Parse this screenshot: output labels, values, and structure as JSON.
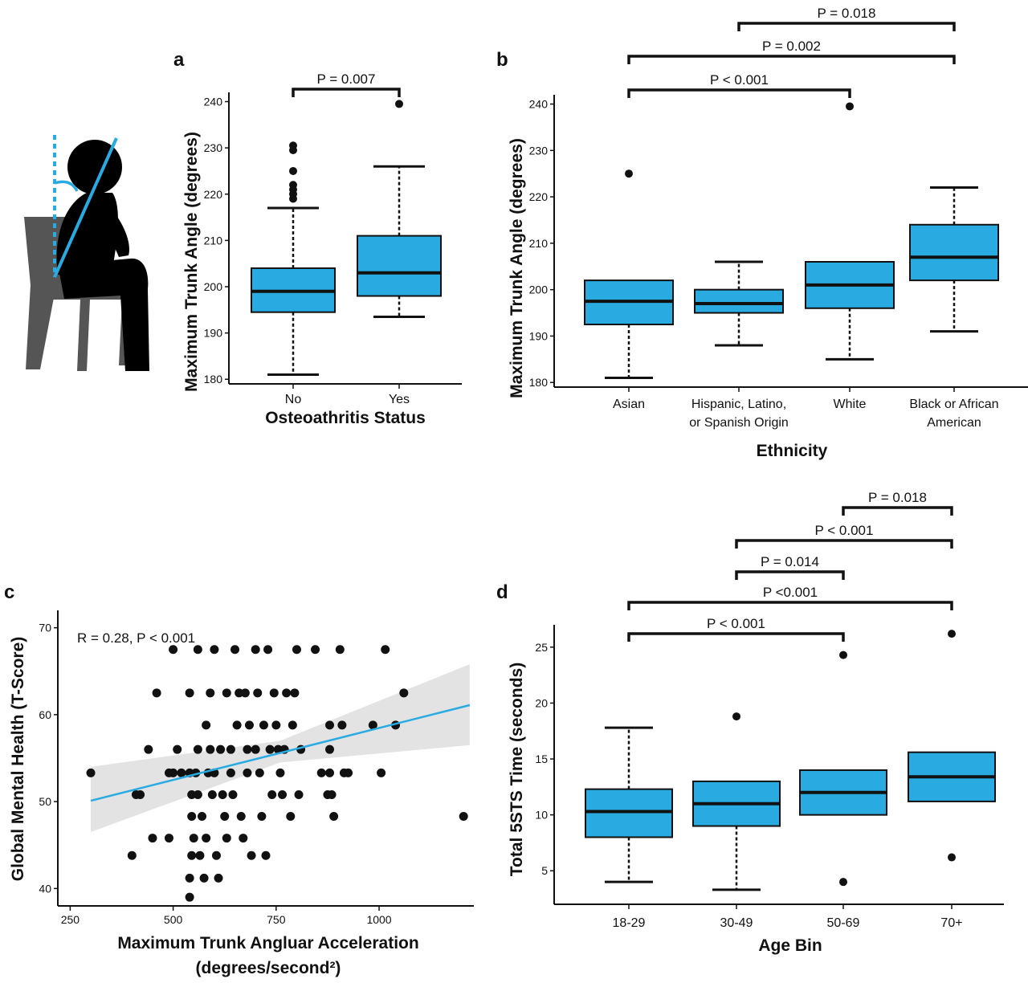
{
  "chart_data": [
    {
      "panel": "a",
      "type": "box",
      "xlabel": "Osteoathritis Status",
      "ylabel": "Maximum Trunk Angle (degrees)",
      "ylim": [
        179,
        242
      ],
      "yticks": [
        180,
        190,
        200,
        210,
        220,
        230,
        240
      ],
      "categories": [
        "No",
        "Yes"
      ],
      "boxes": [
        {
          "whisker_low": 181,
          "q1": 194.5,
          "median": 199,
          "q3": 204,
          "whisker_high": 217,
          "outliers": [
            219,
            220,
            221,
            222,
            225,
            229.5,
            230.5
          ]
        },
        {
          "whisker_low": 193.5,
          "q1": 198,
          "median": 203,
          "q3": 211,
          "whisker_high": 226,
          "outliers": [
            239.5
          ]
        }
      ],
      "comparisons": [
        {
          "from": 0,
          "to": 1,
          "label": "P = 0.007"
        }
      ],
      "fill": "#29abe2"
    },
    {
      "panel": "b",
      "type": "box",
      "xlabel": "Ethnicity",
      "ylabel": "Maximum Trunk Angle (degrees)",
      "ylim": [
        179,
        242
      ],
      "yticks": [
        180,
        190,
        200,
        210,
        220,
        230,
        240
      ],
      "categories": [
        [
          "Asian"
        ],
        [
          "Hispanic, Latino,",
          "or Spanish Origin"
        ],
        [
          "White"
        ],
        [
          "Black or African",
          "American"
        ]
      ],
      "boxes": [
        {
          "whisker_low": 181,
          "q1": 192.5,
          "median": 197.5,
          "q3": 202,
          "whisker_high": 202,
          "outliers": [
            225
          ]
        },
        {
          "whisker_low": 188,
          "q1": 195,
          "median": 197,
          "q3": 200,
          "whisker_high": 206,
          "outliers": []
        },
        {
          "whisker_low": 185,
          "q1": 196,
          "median": 201,
          "q3": 206,
          "whisker_high": 206,
          "outliers": [
            239.5
          ]
        },
        {
          "whisker_low": 191,
          "q1": 202,
          "median": 207,
          "q3": 214,
          "whisker_high": 222,
          "outliers": []
        }
      ],
      "comparisons": [
        {
          "from": 0,
          "to": 2,
          "label": "P < 0.001"
        },
        {
          "from": 0,
          "to": 3,
          "label": "P = 0.002"
        },
        {
          "from": 1,
          "to": 3,
          "label": "P = 0.018"
        }
      ],
      "fill": "#29abe2"
    },
    {
      "panel": "c",
      "type": "scatter",
      "xlabel_lines": [
        "Maximum Trunk Angluar Acceleration",
        "(degrees/second²)"
      ],
      "ylabel": "Global Mental Health (T-Score)",
      "xlim": [
        220,
        1230
      ],
      "ylim": [
        38,
        72
      ],
      "xticks": [
        250,
        500,
        750,
        1000
      ],
      "yticks": [
        40,
        50,
        60,
        70
      ],
      "annotation": "R = 0.28, P < 0.001",
      "fit_line": {
        "x": [
          300,
          1220
        ],
        "y": [
          50.1,
          61.1
        ]
      },
      "confidence_band": {
        "x": [
          300,
          760,
          1220
        ],
        "lower": [
          46.5,
          54.5,
          56.5
        ],
        "upper": [
          54.0,
          57.0,
          65.8
        ]
      },
      "points": [
        [
          300,
          53.3
        ],
        [
          410,
          50.8
        ],
        [
          420,
          50.8
        ],
        [
          400,
          43.8
        ],
        [
          440,
          56.0
        ],
        [
          450,
          45.8
        ],
        [
          460,
          62.5
        ],
        [
          490,
          45.8
        ],
        [
          490,
          53.3
        ],
        [
          500,
          67.5
        ],
        [
          500,
          53.3
        ],
        [
          510,
          56.0
        ],
        [
          520,
          53.3
        ],
        [
          540,
          62.5
        ],
        [
          540,
          53.3
        ],
        [
          545,
          50.8
        ],
        [
          545,
          48.3
        ],
        [
          545,
          43.8
        ],
        [
          540,
          41.2
        ],
        [
          540,
          39.0
        ],
        [
          550,
          45.8
        ],
        [
          555,
          53.3
        ],
        [
          560,
          67.5
        ],
        [
          560,
          56.0
        ],
        [
          560,
          50.8
        ],
        [
          565,
          43.8
        ],
        [
          570,
          48.3
        ],
        [
          575,
          41.2
        ],
        [
          580,
          45.8
        ],
        [
          580,
          58.8
        ],
        [
          585,
          53.3
        ],
        [
          590,
          62.5
        ],
        [
          590,
          56.0
        ],
        [
          595,
          50.8
        ],
        [
          600,
          67.5
        ],
        [
          600,
          53.3
        ],
        [
          605,
          43.8
        ],
        [
          610,
          41.2
        ],
        [
          615,
          56.0
        ],
        [
          620,
          50.8
        ],
        [
          625,
          48.3
        ],
        [
          630,
          45.8
        ],
        [
          630,
          62.5
        ],
        [
          640,
          56.0
        ],
        [
          640,
          53.3
        ],
        [
          645,
          50.8
        ],
        [
          650,
          67.5
        ],
        [
          655,
          58.8
        ],
        [
          660,
          62.5
        ],
        [
          665,
          48.3
        ],
        [
          670,
          45.8
        ],
        [
          675,
          62.5
        ],
        [
          680,
          56.0
        ],
        [
          680,
          53.3
        ],
        [
          685,
          58.8
        ],
        [
          690,
          43.8
        ],
        [
          700,
          67.5
        ],
        [
          700,
          56.0
        ],
        [
          705,
          62.5
        ],
        [
          710,
          53.3
        ],
        [
          715,
          48.3
        ],
        [
          720,
          58.8
        ],
        [
          725,
          43.8
        ],
        [
          730,
          67.5
        ],
        [
          735,
          56.0
        ],
        [
          740,
          50.8
        ],
        [
          745,
          62.5
        ],
        [
          750,
          58.8
        ],
        [
          755,
          56.0
        ],
        [
          760,
          53.3
        ],
        [
          765,
          50.8
        ],
        [
          770,
          56.0
        ],
        [
          775,
          62.5
        ],
        [
          785,
          48.3
        ],
        [
          790,
          58.8
        ],
        [
          795,
          62.5
        ],
        [
          800,
          67.5
        ],
        [
          805,
          50.8
        ],
        [
          810,
          56.0
        ],
        [
          845,
          67.5
        ],
        [
          860,
          53.3
        ],
        [
          875,
          50.8
        ],
        [
          880,
          58.8
        ],
        [
          880,
          56.0
        ],
        [
          880,
          53.3
        ],
        [
          885,
          50.8
        ],
        [
          890,
          48.3
        ],
        [
          905,
          67.5
        ],
        [
          910,
          58.8
        ],
        [
          915,
          53.3
        ],
        [
          925,
          53.3
        ],
        [
          985,
          58.8
        ],
        [
          1005,
          53.3
        ],
        [
          1015,
          67.5
        ],
        [
          1040,
          58.8
        ],
        [
          1060,
          62.5
        ],
        [
          1205,
          48.3
        ]
      ],
      "line_color": "#29abe2"
    },
    {
      "panel": "d",
      "type": "box",
      "xlabel": "Age Bin",
      "ylabel": "Total 5STS Time (seconds)",
      "ylim": [
        2,
        27
      ],
      "yticks": [
        5,
        10,
        15,
        20,
        25
      ],
      "categories": [
        "18-29",
        "30-49",
        "50-69",
        "70+"
      ],
      "boxes": [
        {
          "whisker_low": 4,
          "q1": 8,
          "median": 10.3,
          "q3": 12.3,
          "whisker_high": 17.8,
          "outliers": []
        },
        {
          "whisker_low": 3.3,
          "q1": 9,
          "median": 11,
          "q3": 13,
          "whisker_high": 13,
          "outliers": [
            18.8
          ]
        },
        {
          "whisker_low": 10,
          "q1": 10,
          "median": 12,
          "q3": 14,
          "whisker_high": 14,
          "outliers": [
            24.3,
            4
          ]
        },
        {
          "whisker_low": 11.2,
          "q1": 11.2,
          "median": 13.4,
          "q3": 15.6,
          "whisker_high": 15.6,
          "outliers": [
            26.2,
            6.2
          ]
        }
      ],
      "comparisons": [
        {
          "from": 0,
          "to": 2,
          "label": "P < 0.001"
        },
        {
          "from": 0,
          "to": 3,
          "label": "P <0.001"
        },
        {
          "from": 1,
          "to": 2,
          "label": "P = 0.014"
        },
        {
          "from": 1,
          "to": 3,
          "label": "P < 0.001"
        },
        {
          "from": 2,
          "to": 3,
          "label": "P = 0.018"
        }
      ],
      "fill": "#29abe2"
    }
  ],
  "illustration": {
    "icon": "seated-person-trunk-angle-icon",
    "accent": "#29abe2",
    "chair": "#555555"
  },
  "colors": {
    "box_fill": "#29abe2",
    "ink": "#111111",
    "band": "#d9dadb"
  }
}
